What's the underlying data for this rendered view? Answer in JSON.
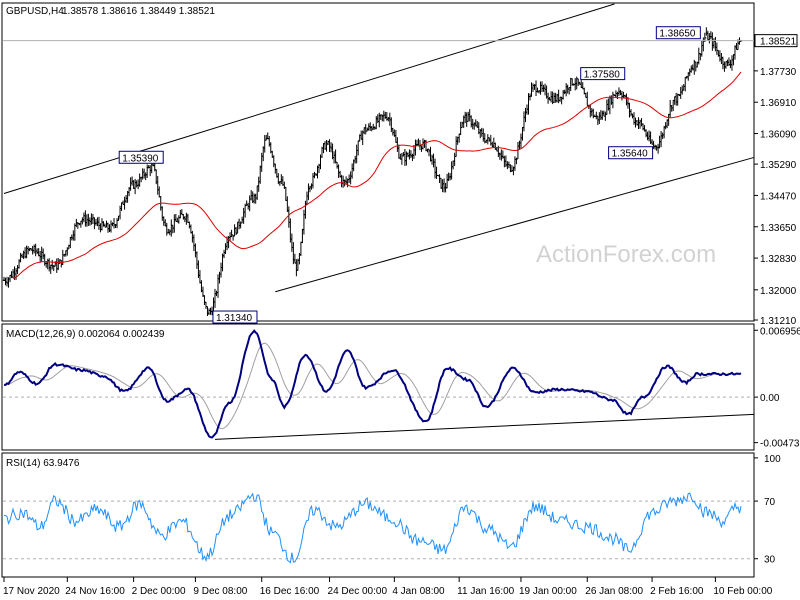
{
  "header": {
    "symbol": "GBPUSD,H4",
    "ohlc": "1.38578 1.38616 1.38449 1.38521"
  },
  "watermark": "ActionForex.com",
  "colors": {
    "candle": "#000000",
    "ma": "#e00000",
    "channel": "#000000",
    "macd": "#000080",
    "signal": "#a0a0a0",
    "rsi": "#1e90ff",
    "level": "#b0b0b0",
    "watermark": "#d2d2d2",
    "price_box_bg": "#ffffff"
  },
  "chart_data": [
    {
      "type": "candlestick",
      "name": "price",
      "ylim": [
        1.3121,
        1.3948
      ],
      "y_ticks": [
        "1.38521",
        "1.37730",
        "1.36910",
        "1.36090",
        "1.35290",
        "1.34470",
        "1.33650",
        "1.32830",
        "1.32000",
        "1.31210"
      ],
      "y_tick_values": [
        1.38521,
        1.3773,
        1.3691,
        1.3609,
        1.3529,
        1.3447,
        1.3365,
        1.3283,
        1.32,
        1.3121
      ],
      "current_price": "1.38521",
      "x_ticks": [
        "17 Nov 2020",
        "24 Nov 16:00",
        "2 Dec 00:00",
        "9 Dec 08:00",
        "16 Dec 16:00",
        "24 Dec 00:00",
        "4 Jan 08:00",
        "11 Jan 16:00",
        "19 Jan 00:00",
        "26 Jan 08:00",
        "2 Feb 16:00",
        "10 Feb 00:00"
      ],
      "x_tick_index": [
        0,
        42,
        86,
        127,
        171,
        216,
        259,
        302,
        343,
        387,
        430,
        472
      ],
      "bar_count": 490,
      "anchors": [
        [
          0,
          1.3225
        ],
        [
          18,
          1.3305
        ],
        [
          34,
          1.3262
        ],
        [
          52,
          1.3385
        ],
        [
          70,
          1.3362
        ],
        [
          86,
          1.3475
        ],
        [
          98,
          1.3521
        ],
        [
          108,
          1.336
        ],
        [
          120,
          1.3395
        ],
        [
          136,
          1.3141
        ],
        [
          150,
          1.3345
        ],
        [
          166,
          1.344
        ],
        [
          174,
          1.3592
        ],
        [
          184,
          1.348
        ],
        [
          194,
          1.326
        ],
        [
          203,
          1.348
        ],
        [
          214,
          1.358
        ],
        [
          226,
          1.348
        ],
        [
          240,
          1.362
        ],
        [
          254,
          1.3655
        ],
        [
          264,
          1.3545
        ],
        [
          278,
          1.358
        ],
        [
          292,
          1.347
        ],
        [
          306,
          1.365
        ],
        [
          322,
          1.359
        ],
        [
          336,
          1.352
        ],
        [
          352,
          1.373
        ],
        [
          366,
          1.37
        ],
        [
          378,
          1.3745
        ],
        [
          394,
          1.365
        ],
        [
          408,
          1.372
        ],
        [
          420,
          1.364
        ],
        [
          432,
          1.3575
        ],
        [
          446,
          1.37
        ],
        [
          458,
          1.379
        ],
        [
          466,
          1.3862
        ],
        [
          480,
          1.379
        ],
        [
          489,
          1.3852
        ]
      ],
      "moving_average_period": 55,
      "annotations": [
        {
          "label": "1.31340",
          "value": 1.3134,
          "index": 136
        },
        {
          "label": "1.35390",
          "value": 1.3539,
          "index": 99
        },
        {
          "label": "1.37580",
          "value": 1.3758,
          "index": 380
        },
        {
          "label": "1.35640",
          "value": 1.3564,
          "index": 433
        },
        {
          "label": "1.38650",
          "value": 1.3865,
          "index": 466
        }
      ],
      "channel": {
        "upper": [
          [
            0,
            1.3452
          ],
          [
            405,
            1.3948
          ]
        ],
        "lower": [
          [
            180,
            1.3195
          ],
          [
            490,
            1.3538
          ]
        ]
      }
    },
    {
      "type": "line",
      "name": "MACD",
      "title": "MACD(12,26,9) 0.002064 0.002439",
      "ylim": [
        -0.0054,
        0.0074
      ],
      "y_ticks": [
        "0.006956",
        "0.00",
        "-0.004736"
      ],
      "y_tick_values": [
        0.006956,
        0.0,
        -0.004736
      ],
      "zero": 0.0,
      "anchors": [
        [
          0,
          0.0012
        ],
        [
          10,
          0.0026
        ],
        [
          22,
          0.0014
        ],
        [
          34,
          0.0034
        ],
        [
          52,
          0.0028
        ],
        [
          66,
          0.0022
        ],
        [
          80,
          0.0006
        ],
        [
          96,
          0.003
        ],
        [
          108,
          -0.0004
        ],
        [
          122,
          0.0008
        ],
        [
          138,
          -0.0042
        ],
        [
          150,
          -0.0005
        ],
        [
          166,
          0.0069
        ],
        [
          178,
          0.0018
        ],
        [
          186,
          -0.001
        ],
        [
          200,
          0.0044
        ],
        [
          214,
          0.0006
        ],
        [
          228,
          0.0048
        ],
        [
          240,
          0.001
        ],
        [
          258,
          0.0028
        ],
        [
          280,
          -0.0025
        ],
        [
          294,
          0.003
        ],
        [
          308,
          0.0018
        ],
        [
          320,
          -0.001
        ],
        [
          338,
          0.003
        ],
        [
          352,
          0.0005
        ],
        [
          368,
          0.0008
        ],
        [
          386,
          0.0006
        ],
        [
          404,
          -0.0003
        ],
        [
          414,
          -0.0018
        ],
        [
          424,
          0.0
        ],
        [
          440,
          0.0032
        ],
        [
          452,
          0.0015
        ],
        [
          460,
          0.0024
        ]
      ],
      "signal_lag": 7,
      "trendline": [
        [
          140,
          -0.0044
        ],
        [
          470,
          -0.002
        ]
      ]
    },
    {
      "type": "line",
      "name": "RSI",
      "title": "RSI(14) 63.9476",
      "ylim": [
        18,
        102
      ],
      "y_ticks": [
        "100",
        "70",
        "30"
      ],
      "y_tick_values": [
        100,
        70,
        30
      ],
      "levels": [
        70,
        30
      ],
      "anchors": [
        [
          0,
          58
        ],
        [
          12,
          62
        ],
        [
          24,
          52
        ],
        [
          34,
          70
        ],
        [
          48,
          56
        ],
        [
          62,
          64
        ],
        [
          76,
          52
        ],
        [
          90,
          68
        ],
        [
          104,
          46
        ],
        [
          118,
          56
        ],
        [
          134,
          32
        ],
        [
          150,
          60
        ],
        [
          166,
          74
        ],
        [
          178,
          48
        ],
        [
          192,
          30
        ],
        [
          206,
          64
        ],
        [
          220,
          52
        ],
        [
          240,
          68
        ],
        [
          256,
          58
        ],
        [
          276,
          42
        ],
        [
          292,
          36
        ],
        [
          306,
          66
        ],
        [
          322,
          50
        ],
        [
          336,
          38
        ],
        [
          352,
          66
        ],
        [
          370,
          56
        ],
        [
          388,
          52
        ],
        [
          404,
          44
        ],
        [
          414,
          36
        ],
        [
          430,
          62
        ],
        [
          444,
          70
        ],
        [
          456,
          74
        ],
        [
          466,
          62
        ],
        [
          478,
          56
        ],
        [
          486,
          66
        ]
      ]
    }
  ]
}
